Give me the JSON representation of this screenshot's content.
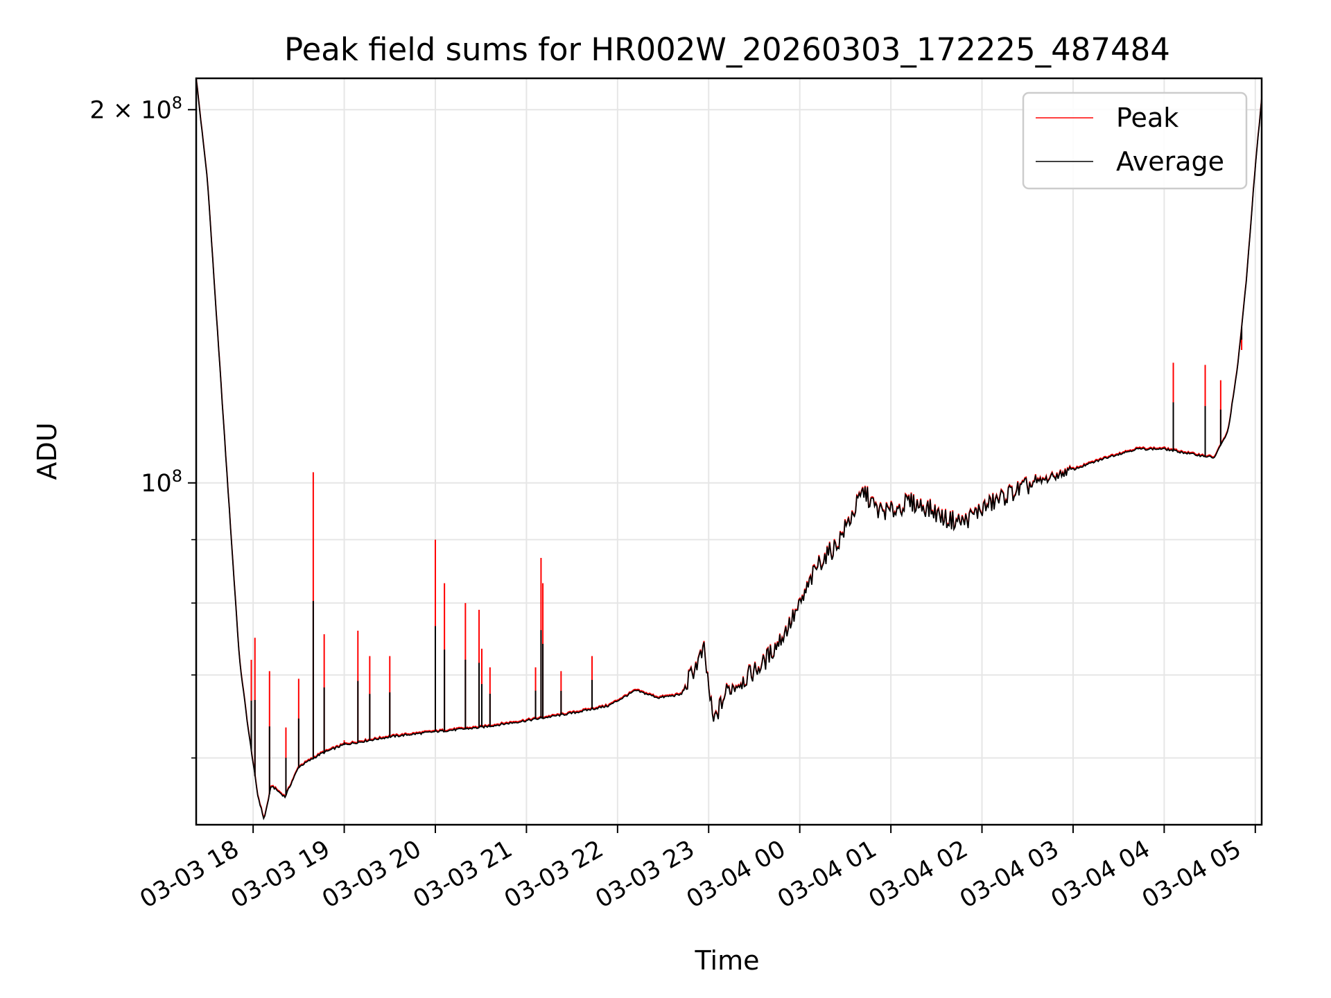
{
  "chart_data": {
    "type": "line",
    "title": "Peak field sums for HR002W_20260303_172225_487484",
    "xlabel": "Time",
    "ylabel": "ADU",
    "y_scale": "log",
    "ylim": [
      53000000,
      212000000
    ],
    "xlim_hours": [
      17.375,
      29.07
    ],
    "grid": true,
    "legend_position": "upper right",
    "x_ticks": [
      {
        "label": "03-03 18",
        "hour": 18
      },
      {
        "label": "03-03 19",
        "hour": 19
      },
      {
        "label": "03-03 20",
        "hour": 20
      },
      {
        "label": "03-03 21",
        "hour": 21
      },
      {
        "label": "03-03 22",
        "hour": 22
      },
      {
        "label": "03-03 23",
        "hour": 23
      },
      {
        "label": "03-04 00",
        "hour": 24
      },
      {
        "label": "03-04 01",
        "hour": 25
      },
      {
        "label": "03-04 02",
        "hour": 26
      },
      {
        "label": "03-04 03",
        "hour": 27
      },
      {
        "label": "03-04 04",
        "hour": 28
      },
      {
        "label": "03-04 05",
        "hour": 29
      }
    ],
    "y_major_ticks": [
      {
        "base": "2 × 10",
        "exp": "8",
        "value": 200000000
      },
      {
        "base": "10",
        "exp": "8",
        "value": 100000000
      }
    ],
    "y_minor_ticks": [
      60000000,
      70000000,
      80000000,
      90000000
    ],
    "series": [
      {
        "name": "Peak",
        "color": "#ff0000",
        "baseline": [
          [
            17.375,
            212000000
          ],
          [
            17.5,
            175000000
          ],
          [
            17.7,
            105000000
          ],
          [
            17.85,
            72000000
          ],
          [
            17.95,
            63000000
          ],
          [
            18.05,
            56000000
          ],
          [
            18.12,
            53500000
          ],
          [
            18.2,
            57000000
          ],
          [
            18.35,
            55800000
          ],
          [
            18.5,
            59000000
          ],
          [
            18.75,
            60500000
          ],
          [
            19.0,
            61500000
          ],
          [
            19.5,
            62400000
          ],
          [
            20.0,
            63000000
          ],
          [
            20.5,
            63500000
          ],
          [
            21.0,
            64300000
          ],
          [
            21.5,
            65200000
          ],
          [
            21.9,
            66100000
          ],
          [
            22.2,
            68000000
          ],
          [
            22.45,
            67100000
          ],
          [
            22.7,
            67500000
          ],
          [
            22.85,
            71000000
          ],
          [
            22.95,
            73200000
          ],
          [
            23.05,
            64000000
          ],
          [
            23.2,
            68000000
          ],
          [
            23.4,
            69500000
          ],
          [
            23.6,
            71500000
          ],
          [
            23.8,
            75000000
          ],
          [
            24.0,
            79500000
          ],
          [
            24.2,
            86000000
          ],
          [
            24.4,
            89000000
          ],
          [
            24.6,
            95000000
          ],
          [
            24.7,
            98500000
          ],
          [
            24.85,
            95000000
          ],
          [
            25.0,
            94800000
          ],
          [
            25.2,
            96500000
          ],
          [
            25.4,
            95500000
          ],
          [
            25.6,
            93500000
          ],
          [
            25.8,
            93000000
          ],
          [
            26.0,
            95300000
          ],
          [
            26.3,
            98000000
          ],
          [
            26.6,
            100000000
          ],
          [
            27.0,
            102500000
          ],
          [
            27.4,
            105000000
          ],
          [
            27.7,
            106500000
          ],
          [
            28.0,
            106500000
          ],
          [
            28.3,
            105500000
          ],
          [
            28.55,
            104800000
          ],
          [
            28.7,
            110000000
          ],
          [
            28.8,
            123000000
          ],
          [
            28.9,
            145000000
          ],
          [
            29.0,
            180000000
          ],
          [
            29.07,
            204000000
          ]
        ],
        "spikes": [
          {
            "hour": 17.98,
            "value": 72000000
          },
          {
            "hour": 18.02,
            "value": 75000000
          },
          {
            "hour": 18.18,
            "value": 70500000
          },
          {
            "hour": 18.36,
            "value": 63500000
          },
          {
            "hour": 18.5,
            "value": 69500000
          },
          {
            "hour": 18.66,
            "value": 102000000
          },
          {
            "hour": 18.78,
            "value": 75500000
          },
          {
            "hour": 19.0,
            "value": 62000000
          },
          {
            "hour": 19.15,
            "value": 76000000
          },
          {
            "hour": 19.28,
            "value": 72500000
          },
          {
            "hour": 19.5,
            "value": 72500000
          },
          {
            "hour": 20.0,
            "value": 90000000
          },
          {
            "hour": 20.1,
            "value": 83000000
          },
          {
            "hour": 20.33,
            "value": 80000000
          },
          {
            "hour": 20.48,
            "value": 79000000
          },
          {
            "hour": 20.51,
            "value": 73500000
          },
          {
            "hour": 20.6,
            "value": 71000000
          },
          {
            "hour": 21.1,
            "value": 71000000
          },
          {
            "hour": 21.16,
            "value": 87000000
          },
          {
            "hour": 21.18,
            "value": 83000000
          },
          {
            "hour": 21.38,
            "value": 70500000
          },
          {
            "hour": 21.72,
            "value": 72500000
          },
          {
            "hour": 28.1,
            "value": 125000000
          },
          {
            "hour": 28.45,
            "value": 124500000
          },
          {
            "hour": 28.62,
            "value": 121000000
          },
          {
            "hour": 28.85,
            "value": 128000000
          }
        ]
      },
      {
        "name": "Average",
        "color": "#000000",
        "spike_fraction": 0.55
      }
    ]
  }
}
